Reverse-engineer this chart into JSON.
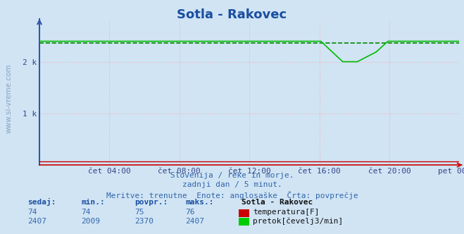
{
  "title": "Sotla - Rakovec",
  "bg_color": "#d0e4f4",
  "plot_bg_color": "#d0e4f4",
  "grid_color_h": "#ffaaaa",
  "grid_color_v": "#ffaaaa",
  "avg_line_color": "#008800",
  "temp_line_color": "#cc0000",
  "flow_line_color": "#00bb00",
  "left_spine_color": "#3355aa",
  "bottom_spine_color": "#cc0000",
  "x_tick_labels": [
    "čet 04:00",
    "čet 08:00",
    "čet 12:00",
    "čet 16:00",
    "čet 20:00",
    "pet 00:00"
  ],
  "x_tick_positions": [
    0.1667,
    0.3333,
    0.5,
    0.6667,
    0.8333,
    1.0
  ],
  "y_min": 0,
  "y_max": 2800,
  "y_ticks": [
    1000,
    2000
  ],
  "y_tick_labels": [
    "1 k",
    "2 k"
  ],
  "subtitle_line1": "Slovenija / reke in morje.",
  "subtitle_line2": "zadnji dan / 5 minut.",
  "subtitle_line3": "Meritve: trenutne  Enote: anglosaške  Črta: povprečje",
  "legend_station": "Sotla - Rakovec",
  "legend_temp_label": "temperatura[F]",
  "legend_flow_label": "pretok[čevelj3/min]",
  "sedaj_label": "sedaj:",
  "min_label": "min.:",
  "povpr_label": "povpr.:",
  "maks_label": "maks.:",
  "temp_sedaj": 74,
  "temp_min": 74,
  "temp_povpr": 75,
  "temp_maks": 76,
  "flow_sedaj": 2407,
  "flow_min": 2009,
  "flow_povpr": 2370,
  "flow_maks": 2407,
  "avg_flow": 2370,
  "title_fontsize": 13,
  "tick_fontsize": 8,
  "subtitle_fontsize": 8,
  "legend_fontsize": 8,
  "watermark": "www.si-vreme.com"
}
